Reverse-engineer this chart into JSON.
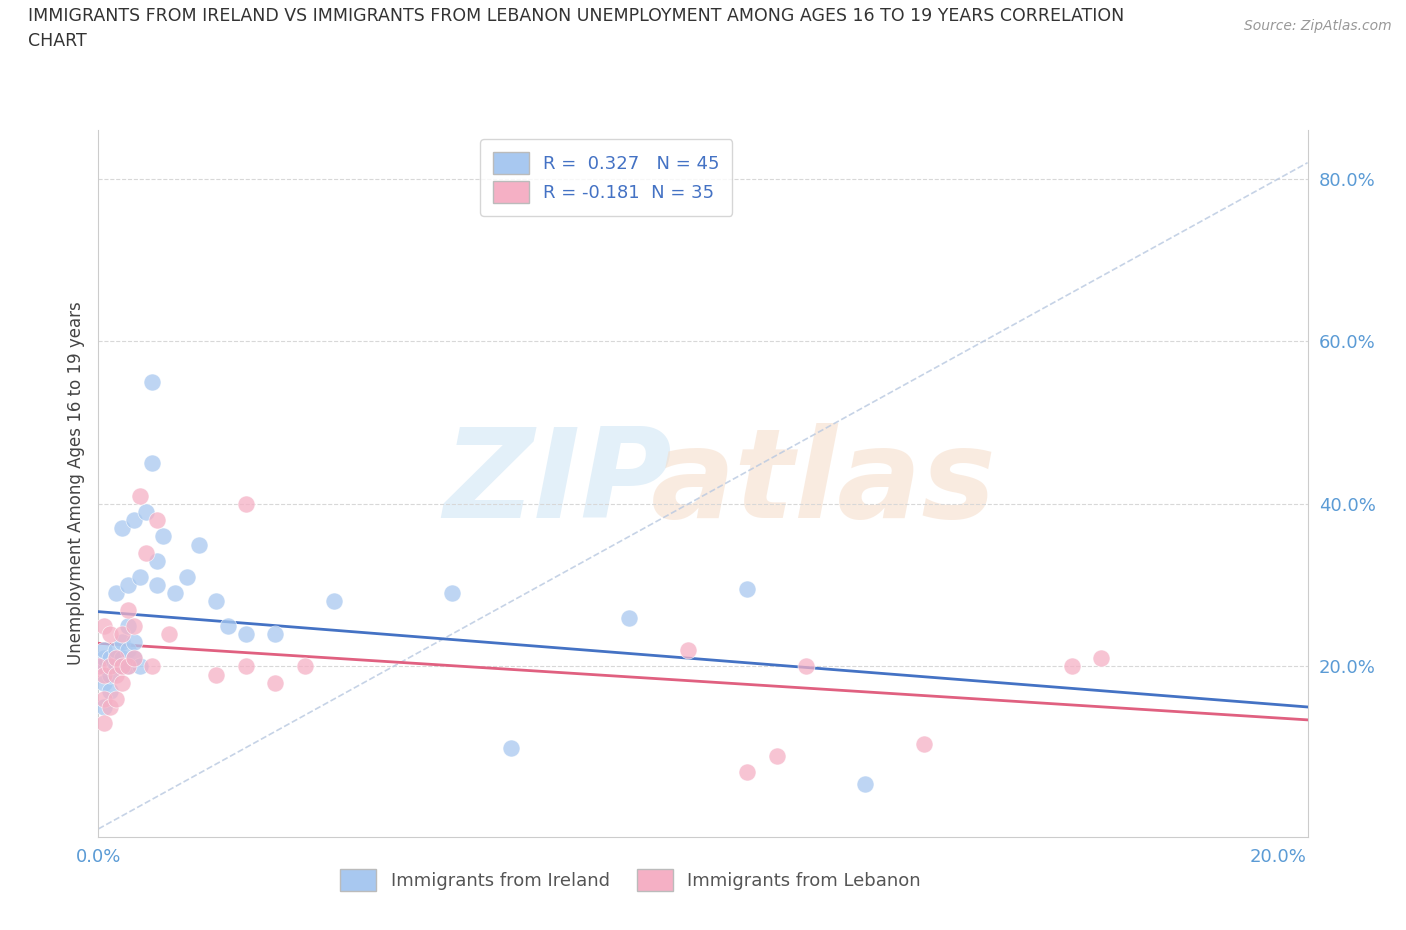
{
  "title_line1": "IMMIGRANTS FROM IRELAND VS IMMIGRANTS FROM LEBANON UNEMPLOYMENT AMONG AGES 16 TO 19 YEARS CORRELATION",
  "title_line2": "CHART",
  "source": "Source: ZipAtlas.com",
  "ylabel": "Unemployment Among Ages 16 to 19 years",
  "xlim": [
    0.0,
    0.205
  ],
  "ylim": [
    -0.01,
    0.86
  ],
  "x_ticks": [
    0.0,
    0.04,
    0.08,
    0.12,
    0.16,
    0.2
  ],
  "y_ticks": [
    0.0,
    0.2,
    0.4,
    0.6,
    0.8
  ],
  "y_tick_labels": [
    "",
    "20.0%",
    "40.0%",
    "60.0%",
    "80.0%"
  ],
  "x_tick_labels": [
    "0.0%",
    "",
    "",
    "",
    "",
    "20.0%"
  ],
  "ireland_color": "#a8c8f0",
  "lebanon_color": "#f5b0c5",
  "ireland_line_color": "#4472c4",
  "lebanon_line_color": "#e06080",
  "grid_color": "#d8d8d8",
  "diag_color": "#b8c8e0",
  "R_ireland": 0.327,
  "N_ireland": 45,
  "R_lebanon": -0.181,
  "N_lebanon": 35,
  "ireland_x": [
    0.0,
    0.001,
    0.001,
    0.001,
    0.001,
    0.001,
    0.002,
    0.002,
    0.002,
    0.003,
    0.003,
    0.003,
    0.003,
    0.004,
    0.004,
    0.004,
    0.004,
    0.005,
    0.005,
    0.005,
    0.005,
    0.006,
    0.006,
    0.006,
    0.007,
    0.007,
    0.008,
    0.009,
    0.009,
    0.01,
    0.01,
    0.011,
    0.013,
    0.015,
    0.017,
    0.02,
    0.022,
    0.025,
    0.03,
    0.04,
    0.06,
    0.07,
    0.09,
    0.11,
    0.13
  ],
  "ireland_y": [
    0.2,
    0.15,
    0.18,
    0.2,
    0.21,
    0.22,
    0.17,
    0.19,
    0.21,
    0.2,
    0.21,
    0.22,
    0.29,
    0.2,
    0.21,
    0.23,
    0.37,
    0.2,
    0.22,
    0.25,
    0.3,
    0.21,
    0.23,
    0.38,
    0.2,
    0.31,
    0.39,
    0.45,
    0.55,
    0.3,
    0.33,
    0.36,
    0.29,
    0.31,
    0.35,
    0.28,
    0.25,
    0.24,
    0.24,
    0.28,
    0.29,
    0.1,
    0.26,
    0.295,
    0.055
  ],
  "lebanon_x": [
    0.0,
    0.001,
    0.001,
    0.001,
    0.001,
    0.002,
    0.002,
    0.002,
    0.003,
    0.003,
    0.003,
    0.004,
    0.004,
    0.004,
    0.005,
    0.005,
    0.006,
    0.006,
    0.007,
    0.008,
    0.009,
    0.01,
    0.012,
    0.02,
    0.025,
    0.025,
    0.03,
    0.035,
    0.1,
    0.11,
    0.115,
    0.12,
    0.14,
    0.165,
    0.17
  ],
  "lebanon_y": [
    0.2,
    0.13,
    0.16,
    0.19,
    0.25,
    0.15,
    0.2,
    0.24,
    0.16,
    0.19,
    0.21,
    0.18,
    0.2,
    0.24,
    0.2,
    0.27,
    0.21,
    0.25,
    0.41,
    0.34,
    0.2,
    0.38,
    0.24,
    0.19,
    0.2,
    0.4,
    0.18,
    0.2,
    0.22,
    0.07,
    0.09,
    0.2,
    0.105,
    0.2,
    0.21
  ]
}
